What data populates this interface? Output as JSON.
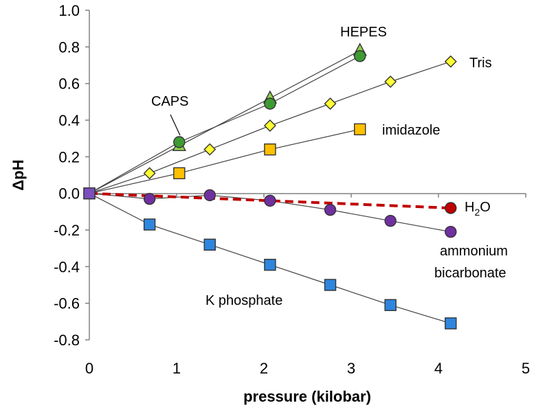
{
  "chart_data": {
    "type": "scatter",
    "xlabel": "pressure (kilobar)",
    "ylabel": "ΔpH",
    "xlim": [
      0,
      5
    ],
    "ylim": [
      -0.8,
      1.0
    ],
    "x_ticks": [
      "0",
      "1",
      "2",
      "3",
      "4",
      "5"
    ],
    "y_ticks": [
      "1.0",
      "0.8",
      "0.6",
      "0.4",
      "0.2",
      "0.0",
      "-0.2",
      "-0.4",
      "-0.6",
      "-0.8"
    ],
    "grid": false,
    "series": [
      {
        "name": "HEPES",
        "marker": "triangle",
        "color": "#92D050",
        "x": [
          0,
          1.03,
          2.07,
          3.1
        ],
        "y": [
          0,
          0.26,
          0.52,
          0.78
        ]
      },
      {
        "name": "CAPS",
        "marker": "circle",
        "color": "#3E9B32",
        "x": [
          0,
          1.03,
          2.07,
          3.1
        ],
        "y": [
          0,
          0.28,
          0.49,
          0.75
        ]
      },
      {
        "name": "Tris",
        "marker": "diamond",
        "color": "#FFFF33",
        "x": [
          0,
          0.69,
          1.38,
          2.07,
          2.76,
          3.45,
          4.14
        ],
        "y": [
          0,
          0.11,
          0.24,
          0.37,
          0.49,
          0.61,
          0.72
        ]
      },
      {
        "name": "imidazole",
        "marker": "square",
        "color": "#FFC000",
        "x": [
          0,
          1.03,
          2.07,
          3.1
        ],
        "y": [
          0,
          0.11,
          0.24,
          0.35
        ]
      },
      {
        "name": "H2O",
        "marker": "circle",
        "color": "#C00000",
        "x": [
          0,
          4.14
        ],
        "y": [
          0,
          -0.08
        ]
      },
      {
        "name": "ammonium bicarbonate",
        "marker": "circle",
        "color": "#7030A0",
        "x": [
          0,
          0.69,
          1.38,
          2.07,
          2.76,
          3.45,
          4.14
        ],
        "y": [
          0,
          -0.03,
          -0.01,
          -0.04,
          -0.09,
          -0.15,
          -0.21
        ]
      },
      {
        "name": "K phosphate",
        "marker": "square",
        "color": "#2E86DE",
        "x": [
          0,
          0.69,
          1.38,
          2.07,
          2.76,
          3.45,
          4.14
        ],
        "y": [
          0,
          -0.17,
          -0.28,
          -0.39,
          -0.5,
          -0.61,
          -0.71
        ]
      }
    ],
    "annotations": {
      "hepes": "HEPES",
      "caps": "CAPS",
      "tris": "Tris",
      "imidazole": "imidazole",
      "h2o_main": "H",
      "h2o_sub": "2",
      "h2o_end": "O",
      "ammonium_line1": "ammonium",
      "ammonium_line2": "bicarbonate",
      "kphos": "K phosphate"
    }
  }
}
